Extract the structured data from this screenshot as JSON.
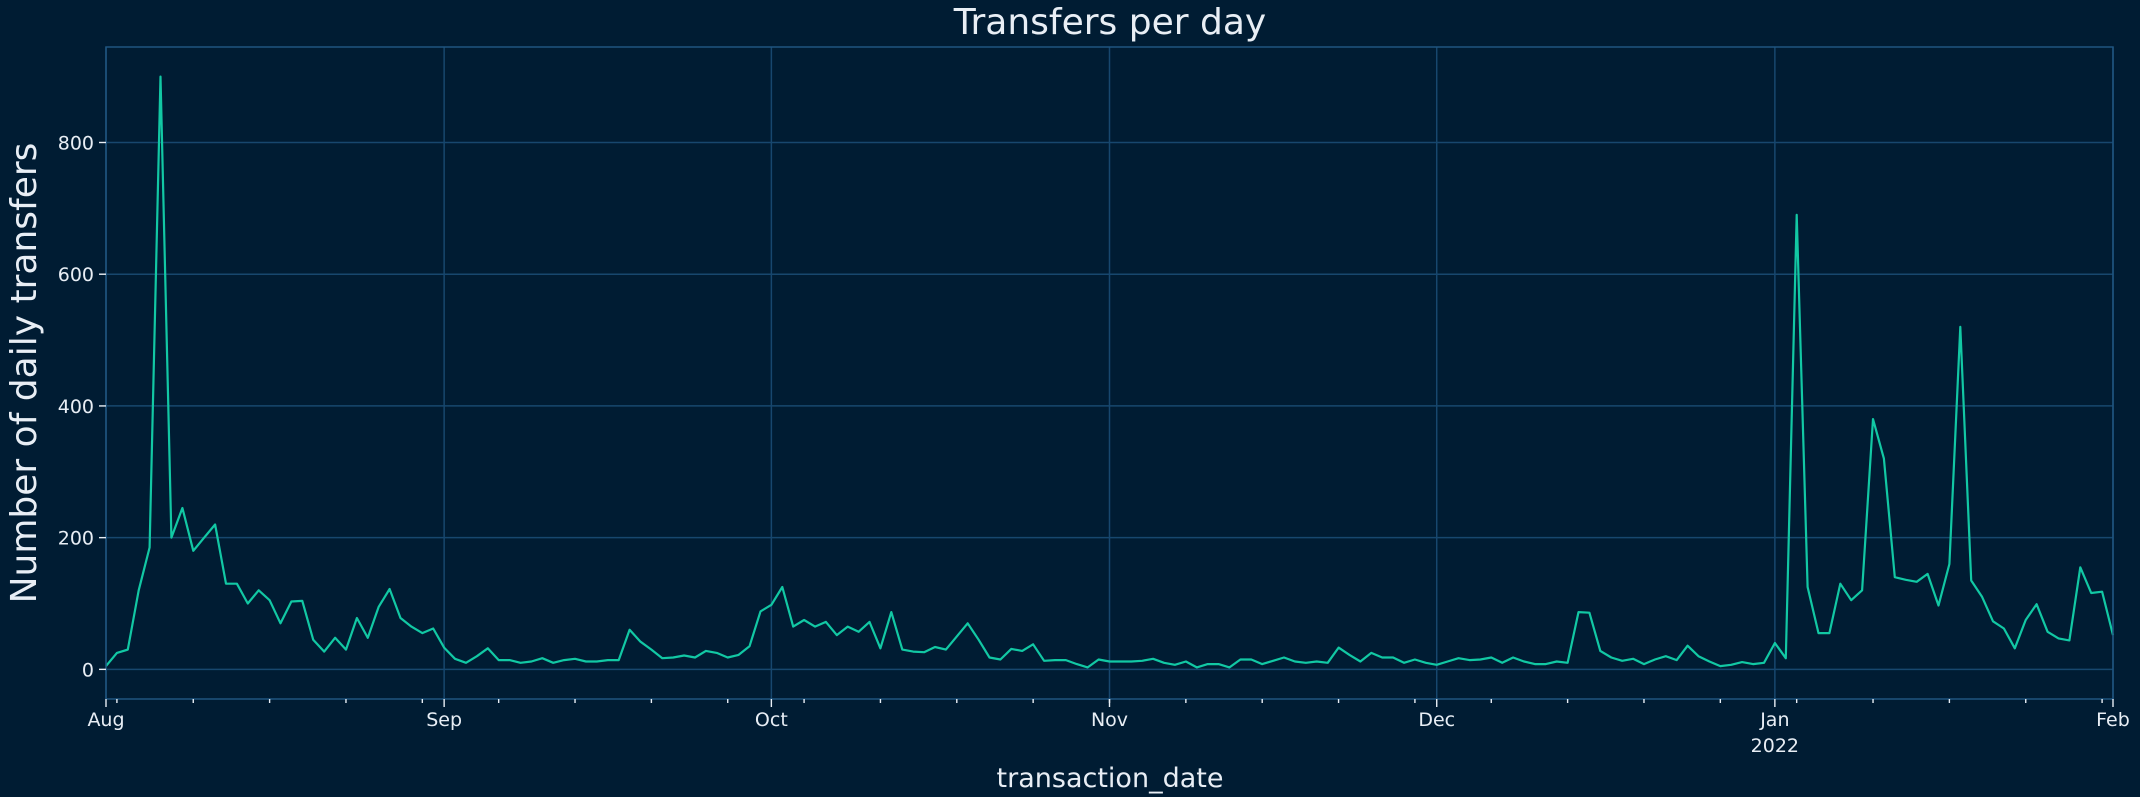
{
  "colors": {
    "background": "#001c33",
    "grid": "#17476e",
    "line": "#12c8a4",
    "text": "#e8eef5"
  },
  "chart_data": {
    "type": "line",
    "title": "Transfers per day",
    "xlabel": "transaction_date",
    "ylabel": "Number of daily transfers",
    "grid": true,
    "xlim": [
      "2021-08-01",
      "2022-02-01"
    ],
    "ylim": [
      -45,
      945
    ],
    "yticks": [
      0,
      200,
      400,
      600,
      800
    ],
    "xticks": [
      {
        "date": "2021-08-01",
        "label": "Aug",
        "sublabel": ""
      },
      {
        "date": "2021-09-01",
        "label": "Sep",
        "sublabel": ""
      },
      {
        "date": "2021-10-01",
        "label": "Oct",
        "sublabel": ""
      },
      {
        "date": "2021-11-01",
        "label": "Nov",
        "sublabel": ""
      },
      {
        "date": "2021-12-01",
        "label": "Dec",
        "sublabel": ""
      },
      {
        "date": "2022-01-01",
        "label": "Jan",
        "sublabel": "2022"
      },
      {
        "date": "2022-02-01",
        "label": "Feb",
        "sublabel": ""
      }
    ],
    "series": [
      {
        "x": [
          "2021-08-01",
          "2021-08-02",
          "2021-08-03",
          "2021-08-04",
          "2021-08-05",
          "2021-08-06",
          "2021-08-07",
          "2021-08-08",
          "2021-08-09",
          "2021-08-10",
          "2021-08-11",
          "2021-08-12",
          "2021-08-13",
          "2021-08-14",
          "2021-08-15",
          "2021-08-16",
          "2021-08-17",
          "2021-08-18",
          "2021-08-19",
          "2021-08-20",
          "2021-08-21",
          "2021-08-22",
          "2021-08-23",
          "2021-08-24",
          "2021-08-25",
          "2021-08-26",
          "2021-08-27",
          "2021-08-28",
          "2021-08-29",
          "2021-08-30",
          "2021-08-31",
          "2021-09-01",
          "2021-09-02",
          "2021-09-03",
          "2021-09-04",
          "2021-09-05",
          "2021-09-06",
          "2021-09-07",
          "2021-09-08",
          "2021-09-09",
          "2021-09-10",
          "2021-09-11",
          "2021-09-12",
          "2021-09-13",
          "2021-09-14",
          "2021-09-15",
          "2021-09-16",
          "2021-09-17",
          "2021-09-18",
          "2021-09-19",
          "2021-09-20",
          "2021-09-21",
          "2021-09-22",
          "2021-09-23",
          "2021-09-24",
          "2021-09-25",
          "2021-09-26",
          "2021-09-27",
          "2021-09-28",
          "2021-09-29",
          "2021-09-30",
          "2021-10-01",
          "2021-10-02",
          "2021-10-03",
          "2021-10-04",
          "2021-10-05",
          "2021-10-06",
          "2021-10-07",
          "2021-10-08",
          "2021-10-09",
          "2021-10-10",
          "2021-10-11",
          "2021-10-12",
          "2021-10-13",
          "2021-10-14",
          "2021-10-15",
          "2021-10-16",
          "2021-10-17",
          "2021-10-18",
          "2021-10-19",
          "2021-10-20",
          "2021-10-21",
          "2021-10-22",
          "2021-10-23",
          "2021-10-24",
          "2021-10-25",
          "2021-10-26",
          "2021-10-27",
          "2021-10-28",
          "2021-10-29",
          "2021-10-30",
          "2021-10-31",
          "2021-11-01",
          "2021-11-02",
          "2021-11-03",
          "2021-11-04",
          "2021-11-05",
          "2021-11-06",
          "2021-11-07",
          "2021-11-08",
          "2021-11-09",
          "2021-11-10",
          "2021-11-11",
          "2021-11-12",
          "2021-11-13",
          "2021-11-14",
          "2021-11-15",
          "2021-11-16",
          "2021-11-17",
          "2021-11-18",
          "2021-11-19",
          "2021-11-20",
          "2021-11-21",
          "2021-11-22",
          "2021-11-23",
          "2021-11-24",
          "2021-11-25",
          "2021-11-26",
          "2021-11-27",
          "2021-11-28",
          "2021-11-29",
          "2021-11-30",
          "2021-12-01",
          "2021-12-02",
          "2021-12-03",
          "2021-12-04",
          "2021-12-05",
          "2021-12-06",
          "2021-12-07",
          "2021-12-08",
          "2021-12-09",
          "2021-12-10",
          "2021-12-11",
          "2021-12-12",
          "2021-12-13",
          "2021-12-14",
          "2021-12-15",
          "2021-12-16",
          "2021-12-17",
          "2021-12-18",
          "2021-12-19",
          "2021-12-20",
          "2021-12-21",
          "2021-12-22",
          "2021-12-23",
          "2021-12-24",
          "2021-12-25",
          "2021-12-26",
          "2021-12-27",
          "2021-12-28",
          "2021-12-29",
          "2021-12-30",
          "2021-12-31",
          "2022-01-01",
          "2022-01-02",
          "2022-01-03",
          "2022-01-04",
          "2022-01-05",
          "2022-01-06",
          "2022-01-07",
          "2022-01-08",
          "2022-01-09",
          "2022-01-10",
          "2022-01-11",
          "2022-01-12",
          "2022-01-13",
          "2022-01-14",
          "2022-01-15",
          "2022-01-16",
          "2022-01-17",
          "2022-01-18",
          "2022-01-19",
          "2022-01-20",
          "2022-01-21",
          "2022-01-22",
          "2022-01-23",
          "2022-01-24",
          "2022-01-25",
          "2022-01-26",
          "2022-01-27",
          "2022-01-28",
          "2022-01-29",
          "2022-01-30",
          "2022-01-31",
          "2022-02-01"
        ],
        "values": [
          5,
          25,
          30,
          120,
          185,
          900,
          200,
          245,
          180,
          200,
          220,
          130,
          130,
          100,
          120,
          105,
          70,
          103,
          104,
          45,
          27,
          48,
          30,
          78,
          48,
          95,
          122,
          78,
          65,
          55,
          62,
          33,
          16,
          10,
          20,
          32,
          14,
          14,
          10,
          12,
          17,
          10,
          14,
          16,
          12,
          12,
          14,
          14,
          60,
          42,
          30,
          17,
          18,
          21,
          18,
          28,
          25,
          18,
          22,
          35,
          88,
          98,
          125,
          65,
          75,
          65,
          72,
          52,
          65,
          57,
          72,
          32,
          87,
          30,
          27,
          26,
          34,
          30,
          50,
          70,
          45,
          18,
          15,
          31,
          28,
          38,
          13,
          14,
          14,
          8,
          3,
          15,
          12,
          12,
          12,
          13,
          16,
          10,
          7,
          12,
          3,
          8,
          8,
          3,
          15,
          15,
          8,
          13,
          18,
          12,
          10,
          12,
          10,
          33,
          22,
          12,
          25,
          18,
          18,
          10,
          15,
          10,
          7,
          12,
          17,
          14,
          15,
          18,
          10,
          18,
          12,
          8,
          8,
          12,
          10,
          87,
          86,
          28,
          18,
          13,
          16,
          8,
          15,
          20,
          14,
          36,
          20,
          12,
          5,
          7,
          11,
          8,
          10,
          40,
          17,
          690,
          125,
          55,
          55,
          130,
          105,
          120,
          380,
          320,
          140,
          136,
          133,
          145,
          97,
          160,
          520,
          135,
          110,
          73,
          62,
          32,
          75,
          99,
          57,
          47,
          44,
          155,
          116,
          118,
          52
        ]
      }
    ]
  }
}
